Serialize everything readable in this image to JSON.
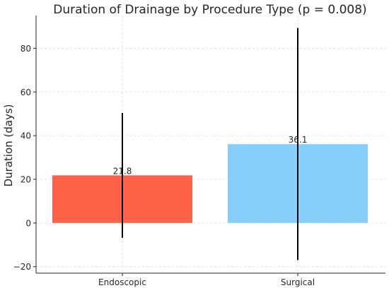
{
  "chart_data": {
    "type": "bar",
    "title": "Duration of Drainage by Procedure Type (p = 0.008)",
    "xlabel": "",
    "ylabel": "Duration (days)",
    "categories": [
      "Endoscopic",
      "Surgical"
    ],
    "values": [
      21.8,
      36.1
    ],
    "value_labels": [
      "21.8",
      "36.1"
    ],
    "error_low": [
      -6.8,
      -17.0
    ],
    "error_high": [
      50.4,
      89.3
    ],
    "ylim": [
      -23,
      95
    ],
    "yticks": [
      -20,
      0,
      20,
      40,
      60,
      80
    ],
    "ytick_labels": [
      "−20",
      "0",
      "20",
      "40",
      "60",
      "80"
    ],
    "grid": true,
    "colors": {
      "bars": [
        "#FF6347",
        "#87CEFA"
      ],
      "error_bars": "#000000",
      "grid": "#d9d9d9",
      "axis": "#262626"
    }
  }
}
